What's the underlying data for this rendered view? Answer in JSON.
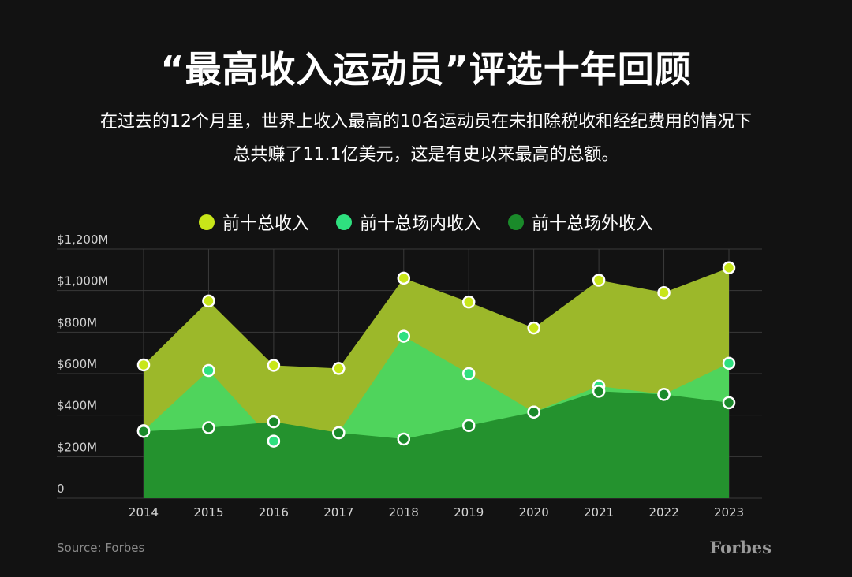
{
  "title": "“最高收入运动员”评选十年回顾",
  "subtitle_lines": [
    "在过去的12个月里，世界上收入最高的10名运动员在未扣除税收和经纪费用的情况下",
    "总共赚了11.1亿美元，这是有史以来最高的总额。"
  ],
  "source": "Source: Forbes",
  "brand": "Forbes",
  "chart_data": {
    "type": "area",
    "x": [
      "2014",
      "2015",
      "2016",
      "2017",
      "2018",
      "2019",
      "2020",
      "2021",
      "2022",
      "2023"
    ],
    "series": [
      {
        "name": "前十总收入",
        "color": "#c8e619",
        "fill": "#9cb82a",
        "values": [
          642,
          950,
          640,
          625,
          1060,
          945,
          820,
          1050,
          990,
          1110
        ]
      },
      {
        "name": "前十总场内收入",
        "color": "#2fe07f",
        "fill": "#4fd45c",
        "values": [
          325,
          615,
          275,
          315,
          780,
          600,
          415,
          540,
          500,
          650
        ]
      },
      {
        "name": "前十总场外收入",
        "color": "#1a8a2a",
        "fill": "#24922e",
        "values": [
          322,
          340,
          368,
          315,
          285,
          350,
          415,
          515,
          500,
          460
        ]
      }
    ],
    "y_ticks": [
      {
        "value": 0,
        "label": "0"
      },
      {
        "value": 200,
        "label": "$200M"
      },
      {
        "value": 400,
        "label": "$400M"
      },
      {
        "value": 600,
        "label": "$600M"
      },
      {
        "value": 800,
        "label": "$800M"
      },
      {
        "value": 1000,
        "label": "$1,000M"
      },
      {
        "value": 1200,
        "label": "$1,200M"
      }
    ],
    "ylim": [
      0,
      1200
    ],
    "grid": true,
    "legend_position": "top-center"
  }
}
